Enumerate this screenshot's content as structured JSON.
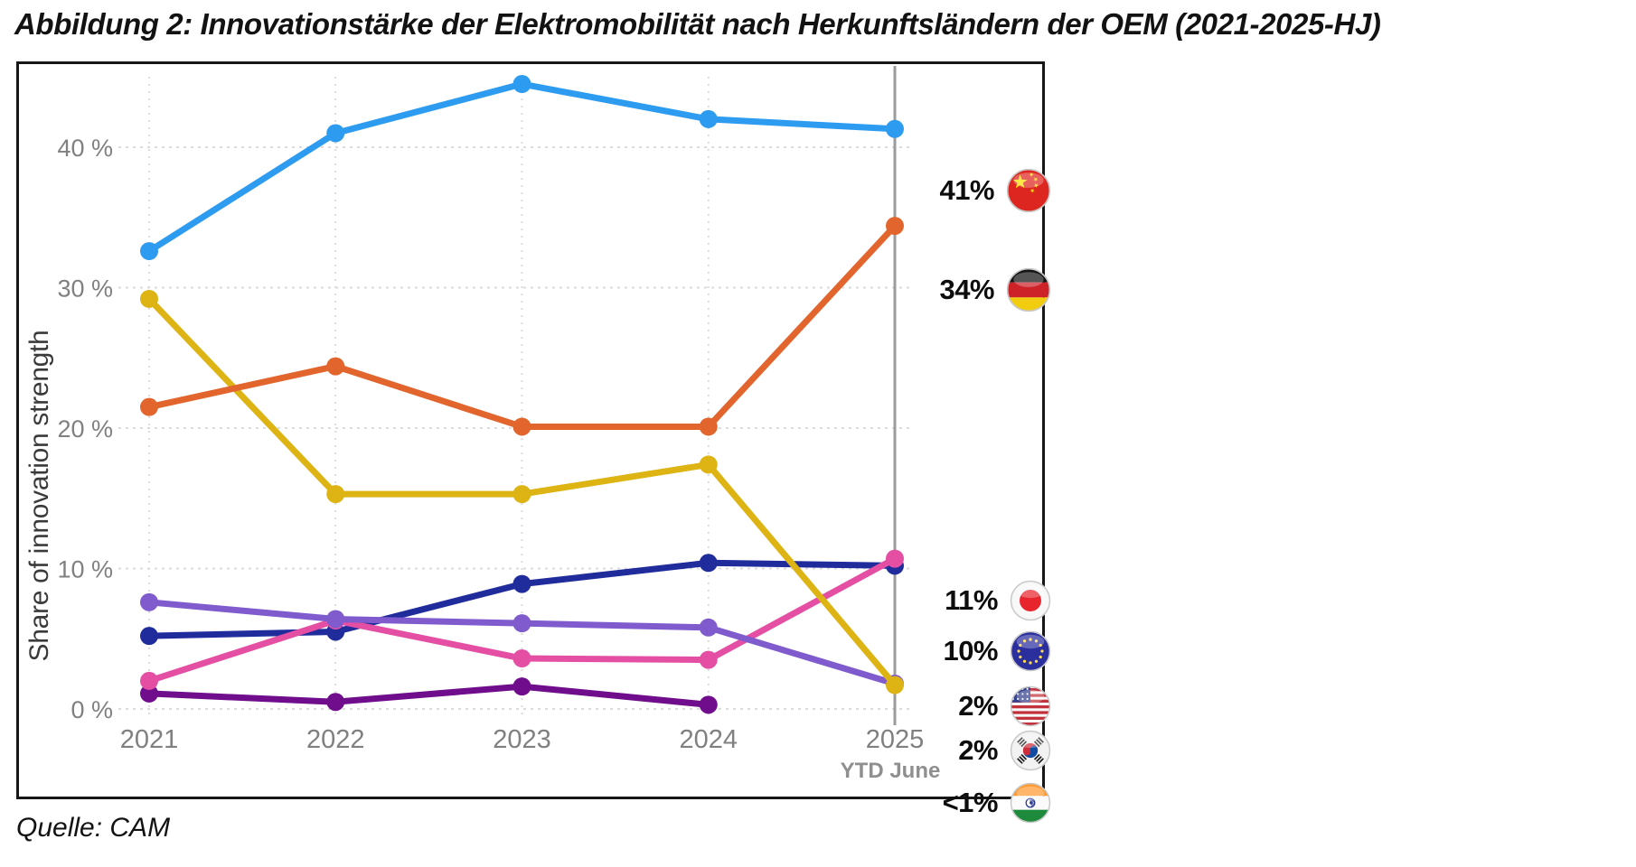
{
  "page": {
    "title": "Abbildung 2: Innovationstärke der Elektromobilität nach Herkunftsländern der OEM (2021-2025-HJ)",
    "source": "Quelle: CAM"
  },
  "chart_data": {
    "type": "line",
    "title": "",
    "ylabel": "Share of innovation strength",
    "xlabel": "",
    "x_note": "YTD June",
    "categories": [
      "2021",
      "2022",
      "2023",
      "2024",
      "2025"
    ],
    "ylim": [
      0,
      46
    ],
    "yticks": [
      {
        "value": 40,
        "label": "40 %"
      },
      {
        "value": 30,
        "label": "30 %"
      },
      {
        "value": 20,
        "label": "20 %"
      },
      {
        "value": 10,
        "label": "10 %"
      },
      {
        "value": 0,
        "label": "0 %"
      }
    ],
    "grid": true,
    "highlighted_category": "2025",
    "legend_position": "right-of-line-ends",
    "series": [
      {
        "name": "China",
        "flag": "china",
        "color": "#2D9BF0",
        "legend_label": "41%",
        "values": [
          32.6,
          41.0,
          44.5,
          42.0,
          41.3
        ]
      },
      {
        "name": "Germany",
        "flag": "germany",
        "color": "#E2652E",
        "legend_label": "34%",
        "values": [
          21.5,
          24.4,
          20.1,
          20.1,
          34.4
        ]
      },
      {
        "name": "Japan",
        "flag": "japan",
        "color": "#E44FA4",
        "legend_label": "11%",
        "values": [
          2.0,
          6.3,
          3.6,
          3.5,
          10.7
        ]
      },
      {
        "name": "EU",
        "flag": "eu",
        "color": "#202C9C",
        "legend_label": "10%",
        "values": [
          5.2,
          5.5,
          8.9,
          10.4,
          10.2
        ]
      },
      {
        "name": "USA",
        "flag": "usa",
        "color": "#DDB414",
        "legend_label": "2%",
        "values": [
          29.2,
          15.3,
          15.3,
          17.4,
          1.7
        ]
      },
      {
        "name": "South Korea",
        "flag": "south-korea",
        "color": "#7F5BCD",
        "legend_label": "2%",
        "values": [
          7.6,
          6.4,
          6.1,
          5.8,
          1.8
        ]
      },
      {
        "name": "India",
        "flag": "india",
        "color": "#6F0D8C",
        "legend_label": "<1%",
        "values": [
          1.1,
          0.5,
          1.6,
          0.3,
          null
        ]
      }
    ],
    "colors": {
      "grid_line": "#DBDBDB",
      "axis_text": "#808080",
      "highlight_line": "#9B9B9B",
      "note_text": "#8F8F8F"
    }
  }
}
